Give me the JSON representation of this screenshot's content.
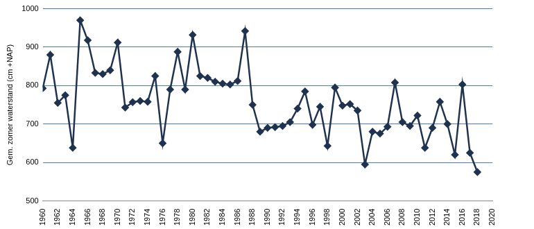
{
  "chart_data": {
    "type": "line",
    "y_label": "Gem. zomer waterstand (cm +NAP)",
    "x": [
      1960,
      1961,
      1962,
      1963,
      1964,
      1965,
      1966,
      1967,
      1968,
      1969,
      1970,
      1971,
      1972,
      1973,
      1974,
      1975,
      1976,
      1977,
      1978,
      1979,
      1980,
      1981,
      1982,
      1983,
      1984,
      1985,
      1986,
      1987,
      1988,
      1989,
      1990,
      1991,
      1992,
      1993,
      1994,
      1995,
      1996,
      1997,
      1998,
      1999,
      2000,
      2001,
      2002,
      2003,
      2004,
      2005,
      2006,
      2007,
      2008,
      2009,
      2010,
      2011,
      2012,
      2013,
      2014,
      2015,
      2016,
      2017,
      2018
    ],
    "values": [
      793,
      880,
      755,
      775,
      638,
      970,
      918,
      833,
      830,
      840,
      912,
      743,
      757,
      760,
      758,
      825,
      650,
      790,
      888,
      790,
      932,
      825,
      820,
      810,
      805,
      803,
      812,
      942,
      750,
      680,
      690,
      692,
      695,
      705,
      740,
      785,
      698,
      745,
      643,
      795,
      748,
      752,
      735,
      595,
      680,
      675,
      693,
      808,
      705,
      695,
      722,
      638,
      690,
      758,
      700,
      620,
      803,
      625,
      575
    ],
    "color": "#1f3350",
    "marker": "diamond",
    "line_style": "solid",
    "xlim": [
      1960,
      2020
    ],
    "xticks": [
      1960,
      1962,
      1964,
      1966,
      1968,
      1970,
      1972,
      1974,
      1976,
      1978,
      1980,
      1982,
      1984,
      1986,
      1988,
      1990,
      1992,
      1994,
      1996,
      1998,
      2000,
      2002,
      2004,
      2006,
      2008,
      2010,
      2012,
      2014,
      2016,
      2018,
      2020
    ],
    "ylim": [
      500,
      1000
    ],
    "yticks": [
      500,
      600,
      700,
      800,
      900,
      1000
    ],
    "grid": true
  }
}
